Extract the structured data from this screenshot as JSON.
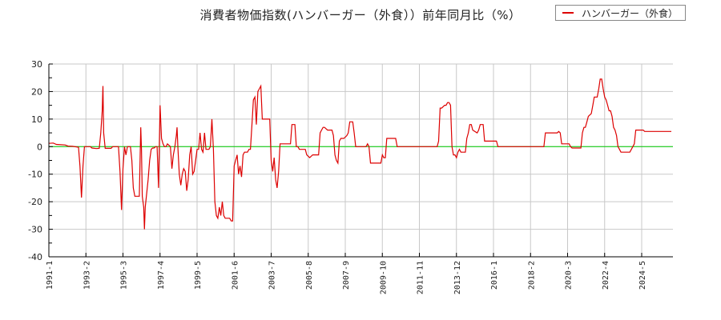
{
  "chart_data": {
    "type": "line",
    "title": "消費者物価指数(ハンバーガー（外食））前年同月比（%）",
    "xlabel": "",
    "ylabel": "",
    "ylim": [
      -40,
      30
    ],
    "yticks": [
      30,
      20,
      10,
      0,
      -10,
      -20,
      -30,
      -40
    ],
    "xticks": [
      "1991-1",
      "1993-2",
      "1995-3",
      "1997-4",
      "1999-5",
      "2001-6",
      "2003-7",
      "2005-8",
      "2007-9",
      "2009-10",
      "2011-11",
      "2013-12",
      "2016-1",
      "2018-2",
      "2020-3",
      "2022-4",
      "2024-5"
    ],
    "grid": true,
    "legend_position": "top-right",
    "zero_line_color": "#00cc00",
    "series": [
      {
        "name": "ハンバーガー（外食）",
        "color": "#dd0000",
        "x_unit": "months since 1991-1",
        "points": [
          [
            0,
            1.2
          ],
          [
            3,
            1.3
          ],
          [
            5,
            0.8
          ],
          [
            11,
            0.6
          ],
          [
            13,
            0.2
          ],
          [
            16,
            0.1
          ],
          [
            20,
            -0.2
          ],
          [
            21,
            -7
          ],
          [
            22,
            -18.5
          ],
          [
            23,
            -7
          ],
          [
            24,
            0
          ],
          [
            28,
            0
          ],
          [
            29,
            -0.5
          ],
          [
            32,
            -0.7
          ],
          [
            34,
            -0.6
          ],
          [
            35,
            5
          ],
          [
            36,
            13
          ],
          [
            36.5,
            22
          ],
          [
            37,
            5
          ],
          [
            38,
            -0.6
          ],
          [
            42,
            -0.6
          ],
          [
            43,
            0
          ],
          [
            47,
            0
          ],
          [
            48,
            -9
          ],
          [
            49,
            -23
          ],
          [
            50,
            -8
          ],
          [
            51,
            0
          ],
          [
            52,
            -3
          ],
          [
            53,
            0
          ],
          [
            55,
            0
          ],
          [
            56,
            -5
          ],
          [
            57,
            -15
          ],
          [
            58,
            -18
          ],
          [
            61,
            -18
          ],
          [
            62,
            7
          ],
          [
            62.5,
            -1
          ],
          [
            63,
            -18
          ],
          [
            64,
            -22
          ],
          [
            64.5,
            -30
          ],
          [
            65,
            -22
          ],
          [
            66,
            -17
          ],
          [
            67,
            -12
          ],
          [
            68,
            -5
          ],
          [
            69,
            -1
          ],
          [
            70,
            -0.5
          ],
          [
            71,
            -0.5
          ],
          [
            72,
            0
          ],
          [
            73,
            0
          ],
          [
            74,
            -15
          ],
          [
            75,
            15
          ],
          [
            76,
            3
          ],
          [
            77,
            1
          ],
          [
            78,
            0
          ],
          [
            79,
            0
          ],
          [
            80,
            1
          ],
          [
            82,
            0
          ],
          [
            83,
            -8
          ],
          [
            84,
            -3
          ],
          [
            85,
            0
          ],
          [
            86,
            4
          ],
          [
            86.5,
            7
          ],
          [
            87,
            0
          ],
          [
            88,
            -10
          ],
          [
            89,
            -14
          ],
          [
            90,
            -10
          ],
          [
            91,
            -8
          ],
          [
            92,
            -9
          ],
          [
            93,
            -16
          ],
          [
            94,
            -12
          ],
          [
            95,
            -3
          ],
          [
            96,
            0
          ],
          [
            97,
            -10
          ],
          [
            98,
            -9
          ],
          [
            99,
            -5
          ],
          [
            100,
            -1
          ],
          [
            101,
            -1
          ],
          [
            102,
            5
          ],
          [
            103,
            -1
          ],
          [
            104,
            -2
          ],
          [
            105,
            5
          ],
          [
            106,
            -1
          ],
          [
            108,
            -1
          ],
          [
            109,
            0
          ],
          [
            110,
            10
          ],
          [
            111,
            -1
          ],
          [
            112,
            -20
          ],
          [
            113,
            -25
          ],
          [
            114,
            -26
          ],
          [
            115,
            -22
          ],
          [
            116,
            -25
          ],
          [
            117,
            -20
          ],
          [
            118,
            -25
          ],
          [
            119,
            -26
          ],
          [
            122,
            -26
          ],
          [
            123,
            -27
          ],
          [
            124,
            -27
          ],
          [
            125,
            -7
          ],
          [
            126,
            -5
          ],
          [
            127,
            -3
          ],
          [
            128,
            -10
          ],
          [
            129,
            -7
          ],
          [
            130,
            -11
          ],
          [
            131,
            -3
          ],
          [
            132,
            -2
          ],
          [
            134,
            -2
          ],
          [
            135,
            -1
          ],
          [
            136,
            -1
          ],
          [
            137,
            8
          ],
          [
            138,
            17
          ],
          [
            139,
            18
          ],
          [
            140,
            8
          ],
          [
            141,
            20
          ],
          [
            142,
            21
          ],
          [
            143,
            22
          ],
          [
            144,
            10
          ],
          [
            149,
            10
          ],
          [
            150,
            -5
          ],
          [
            151,
            -9
          ],
          [
            152,
            -4
          ],
          [
            153,
            -12
          ],
          [
            154,
            -15
          ],
          [
            155,
            -9
          ],
          [
            156,
            1
          ],
          [
            163,
            1
          ],
          [
            164,
            8
          ],
          [
            166,
            8
          ],
          [
            167,
            0
          ],
          [
            168,
            0
          ],
          [
            169,
            -1
          ],
          [
            173,
            -1
          ],
          [
            174,
            -3
          ],
          [
            176,
            -4
          ],
          [
            178,
            -3
          ],
          [
            182,
            -3
          ],
          [
            183,
            5
          ],
          [
            184,
            6
          ],
          [
            185,
            7
          ],
          [
            186,
            7
          ],
          [
            188,
            6
          ],
          [
            191,
            6
          ],
          [
            192,
            4
          ],
          [
            193,
            -3
          ],
          [
            194,
            -5
          ],
          [
            195,
            -6
          ],
          [
            196,
            2
          ],
          [
            197,
            3
          ],
          [
            198,
            3
          ],
          [
            199,
            3
          ],
          [
            201,
            4
          ],
          [
            202,
            5
          ],
          [
            203,
            9
          ],
          [
            205,
            9
          ],
          [
            206,
            5
          ],
          [
            207,
            0
          ],
          [
            214,
            0
          ],
          [
            215,
            1
          ],
          [
            216,
            0
          ],
          [
            217,
            -6
          ],
          [
            224,
            -6
          ],
          [
            225,
            -3
          ],
          [
            226,
            -4
          ],
          [
            227,
            -4
          ],
          [
            228,
            3
          ],
          [
            234,
            3
          ],
          [
            235,
            0
          ],
          [
            262,
            0
          ],
          [
            263,
            2
          ],
          [
            264,
            14
          ],
          [
            265,
            14
          ],
          [
            267,
            15
          ],
          [
            268,
            15
          ],
          [
            269,
            16
          ],
          [
            270,
            16
          ],
          [
            271,
            15
          ],
          [
            272,
            0
          ],
          [
            273,
            -3
          ],
          [
            274,
            -3
          ],
          [
            275,
            -4
          ],
          [
            276,
            -2
          ],
          [
            277,
            -1
          ],
          [
            278,
            -2
          ],
          [
            281,
            -2
          ],
          [
            282,
            3
          ],
          [
            283,
            5
          ],
          [
            284,
            8
          ],
          [
            285,
            8
          ],
          [
            286,
            6
          ],
          [
            289,
            5
          ],
          [
            290,
            6
          ],
          [
            291,
            8
          ],
          [
            293,
            8
          ],
          [
            294,
            2
          ],
          [
            302,
            2
          ],
          [
            303,
            0
          ],
          [
            334,
            0
          ],
          [
            335,
            5
          ],
          [
            343,
            5
          ],
          [
            344,
            5.5
          ],
          [
            345,
            5
          ],
          [
            346,
            1
          ],
          [
            351,
            1
          ],
          [
            352,
            0
          ],
          [
            353,
            -0.5
          ],
          [
            356,
            -0.5
          ],
          [
            359,
            -0.5
          ],
          [
            360,
            5
          ],
          [
            361,
            7
          ],
          [
            362,
            7
          ],
          [
            363,
            9
          ],
          [
            364,
            11
          ],
          [
            366,
            12
          ],
          [
            367,
            15
          ],
          [
            368,
            18
          ],
          [
            370,
            18
          ],
          [
            371,
            21
          ],
          [
            372,
            24.5
          ],
          [
            373,
            24.5
          ],
          [
            374,
            21
          ],
          [
            375,
            18
          ],
          [
            376,
            17
          ],
          [
            377,
            15
          ],
          [
            378,
            13
          ],
          [
            379,
            13
          ],
          [
            380,
            11
          ],
          [
            381,
            7
          ],
          [
            382,
            6
          ],
          [
            383,
            4
          ],
          [
            384,
            0
          ],
          [
            385,
            -1
          ],
          [
            386,
            -2
          ],
          [
            392,
            -2
          ],
          [
            393,
            -1
          ],
          [
            394,
            0
          ],
          [
            395,
            1
          ],
          [
            396,
            6
          ],
          [
            401,
            6
          ],
          [
            402,
            5.5
          ],
          [
            420,
            5.5
          ]
        ]
      }
    ]
  },
  "legend": {
    "label": "ハンバーガー（外食）",
    "color": "#dd0000"
  }
}
